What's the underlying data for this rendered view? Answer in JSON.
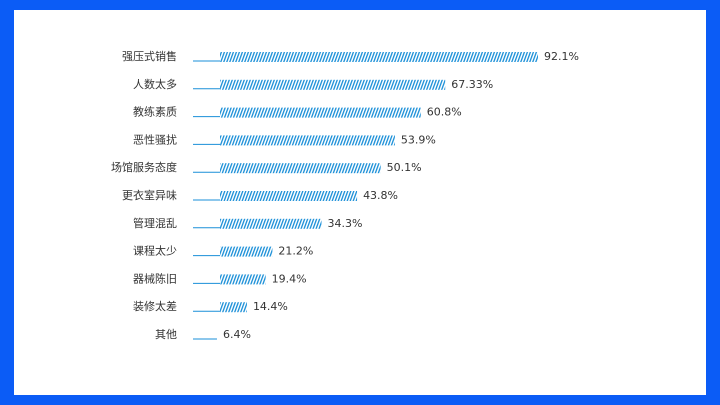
{
  "chart_data": {
    "type": "bar",
    "orientation": "horizontal",
    "categories": [
      "强压式销售",
      "人数太多",
      "教练素质",
      "恶性骚扰",
      "场馆服务态度",
      "更衣室异味",
      "管理混乱",
      "课程太少",
      "器械陈旧",
      "装修太差",
      "其他"
    ],
    "values": [
      92.1,
      67.33,
      60.8,
      53.9,
      50.1,
      43.8,
      34.3,
      21.2,
      19.4,
      14.4,
      6.4
    ],
    "value_labels": [
      "92.1%",
      "67.33%",
      "60.8%",
      "53.9%",
      "50.1%",
      "43.8%",
      "34.3%",
      "21.2%",
      "19.4%",
      "14.4%",
      "6.4%"
    ],
    "color": "#1a8fd8"
  }
}
